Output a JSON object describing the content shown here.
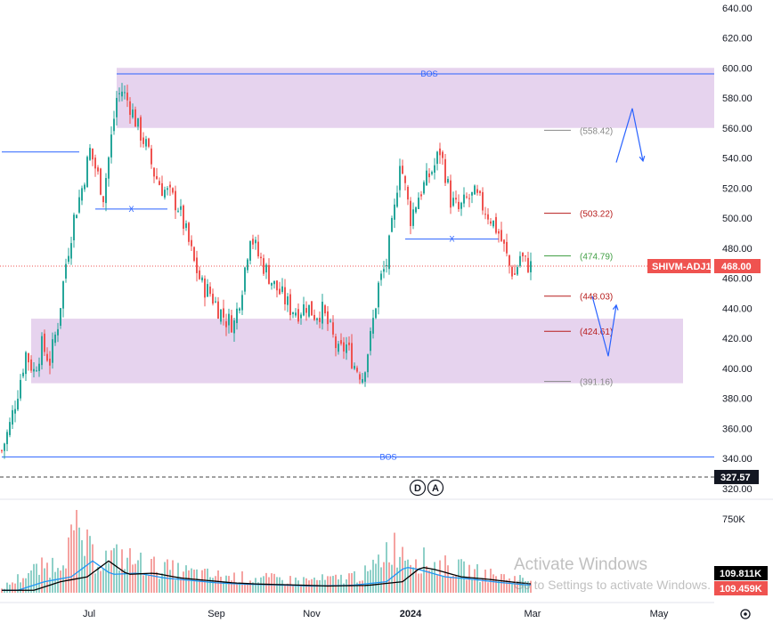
{
  "chart_data": {
    "type": "candlestick",
    "symbol_label": "SHIVM-ADJ1",
    "last_price": "468.00",
    "colors": {
      "up": "#26a69a",
      "down": "#ef5350",
      "zone": "#e6d3ee",
      "bos": "#2962ff",
      "volume_up": "#8fd0c8",
      "volume_down": "#f5a3a1"
    },
    "y_axis": {
      "range": [
        316,
        644
      ],
      "ticks": [
        "640.00",
        "620.00",
        "600.00",
        "580.00",
        "560.00",
        "540.00",
        "520.00",
        "500.00",
        "480.00",
        "460.00",
        "440.00",
        "420.00",
        "400.00",
        "380.00",
        "360.00",
        "340.00",
        "320.00"
      ]
    },
    "x_axis": {
      "ticks": [
        "Jul",
        "Sep",
        "Nov",
        "2024",
        "Mar",
        "May"
      ]
    },
    "price_path": [
      {
        "t": 0,
        "p": 345
      },
      {
        "t": 3,
        "p": 362
      },
      {
        "t": 6,
        "p": 385
      },
      {
        "t": 9,
        "p": 410
      },
      {
        "t": 12,
        "p": 398
      },
      {
        "t": 15,
        "p": 415
      },
      {
        "t": 18,
        "p": 405
      },
      {
        "t": 21,
        "p": 430
      },
      {
        "t": 24,
        "p": 470
      },
      {
        "t": 27,
        "p": 500
      },
      {
        "t": 30,
        "p": 520
      },
      {
        "t": 33,
        "p": 545
      },
      {
        "t": 36,
        "p": 528
      },
      {
        "t": 38,
        "p": 515
      },
      {
        "t": 40,
        "p": 540
      },
      {
        "t": 43,
        "p": 580
      },
      {
        "t": 45,
        "p": 585
      },
      {
        "t": 48,
        "p": 575
      },
      {
        "t": 51,
        "p": 560
      },
      {
        "t": 54,
        "p": 548
      },
      {
        "t": 57,
        "p": 530
      },
      {
        "t": 60,
        "p": 520
      },
      {
        "t": 63,
        "p": 515
      },
      {
        "t": 66,
        "p": 508
      },
      {
        "t": 69,
        "p": 490
      },
      {
        "t": 72,
        "p": 470
      },
      {
        "t": 75,
        "p": 455
      },
      {
        "t": 78,
        "p": 450
      },
      {
        "t": 81,
        "p": 440
      },
      {
        "t": 84,
        "p": 432
      },
      {
        "t": 87,
        "p": 430
      },
      {
        "t": 90,
        "p": 455
      },
      {
        "t": 93,
        "p": 490
      },
      {
        "t": 96,
        "p": 475
      },
      {
        "t": 99,
        "p": 465
      },
      {
        "t": 102,
        "p": 455
      },
      {
        "t": 105,
        "p": 448
      },
      {
        "t": 108,
        "p": 440
      },
      {
        "t": 111,
        "p": 438
      },
      {
        "t": 114,
        "p": 442
      },
      {
        "t": 117,
        "p": 436
      },
      {
        "t": 120,
        "p": 438
      },
      {
        "t": 123,
        "p": 425
      },
      {
        "t": 126,
        "p": 410
      },
      {
        "t": 129,
        "p": 415
      },
      {
        "t": 132,
        "p": 402
      },
      {
        "t": 135,
        "p": 395
      },
      {
        "t": 138,
        "p": 420
      },
      {
        "t": 141,
        "p": 455
      },
      {
        "t": 144,
        "p": 470
      },
      {
        "t": 147,
        "p": 505
      },
      {
        "t": 149,
        "p": 540
      },
      {
        "t": 151,
        "p": 520
      },
      {
        "t": 153,
        "p": 500
      },
      {
        "t": 156,
        "p": 515
      },
      {
        "t": 159,
        "p": 525
      },
      {
        "t": 162,
        "p": 535
      },
      {
        "t": 164,
        "p": 545
      },
      {
        "t": 166,
        "p": 530
      },
      {
        "t": 168,
        "p": 512
      },
      {
        "t": 171,
        "p": 505
      },
      {
        "t": 174,
        "p": 512
      },
      {
        "t": 177,
        "p": 515
      },
      {
        "t": 180,
        "p": 508
      },
      {
        "t": 183,
        "p": 500
      },
      {
        "t": 186,
        "p": 490
      },
      {
        "t": 188,
        "p": 480
      },
      {
        "t": 190,
        "p": 468
      },
      {
        "t": 192,
        "p": 462
      },
      {
        "t": 194,
        "p": 475
      },
      {
        "t": 196,
        "p": 470
      },
      {
        "t": 198,
        "p": 468
      }
    ],
    "zones": [
      {
        "from_t": 43,
        "to_t": null,
        "low": 560,
        "high": 600
      },
      {
        "from_t": 11,
        "to_t": 255,
        "low": 390,
        "high": 433
      }
    ],
    "horizontal_lines": [
      {
        "price": 596,
        "from_t": 43,
        "label": "BOS",
        "kind": "bos"
      },
      {
        "price": 341,
        "from_t": 0,
        "label": "BOS",
        "kind": "bos"
      },
      {
        "price": 544,
        "from_t": 0,
        "to_t": 29,
        "label": "",
        "kind": "plain"
      },
      {
        "price": 506,
        "from_t": 35,
        "to_t": 62,
        "label": "X",
        "kind": "plain"
      },
      {
        "price": 486,
        "from_t": 151,
        "to_t": 186,
        "label": "X",
        "kind": "plain"
      }
    ],
    "fib_levels": [
      {
        "price": 558.42,
        "label": "(558.42)",
        "color": "#888888"
      },
      {
        "price": 503.22,
        "label": "(503.22)",
        "color": "#b71c1c"
      },
      {
        "price": 474.79,
        "label": "(474.79)",
        "color": "#43a047"
      },
      {
        "price": 448.03,
        "label": "(448.03)",
        "color": "#b71c1c"
      },
      {
        "price": 424.61,
        "label": "(424.61)",
        "color": "#b71c1c"
      },
      {
        "price": 391.16,
        "label": "(391.16)",
        "color": "#888888"
      }
    ],
    "current_price_line": {
      "price": 468,
      "color": "#ef5350"
    },
    "dashed_level": {
      "price": 327.57,
      "label": "327.57"
    },
    "projections": [
      {
        "points": [
          [
            230,
            537
          ],
          [
            236,
            573
          ],
          [
            240,
            538
          ]
        ]
      },
      {
        "points": [
          [
            221,
            448
          ],
          [
            227,
            408
          ],
          [
            230,
            442
          ]
        ]
      }
    ],
    "event_markers": [
      "D",
      "A"
    ],
    "volume": {
      "axis_label": "750K",
      "sma_fast_label": "109.811K",
      "sma_slow_label": "109.459K",
      "profile": [
        {
          "t": 0,
          "v": 40
        },
        {
          "t": 10,
          "v": 180
        },
        {
          "t": 20,
          "v": 260
        },
        {
          "t": 28,
          "v": 520
        },
        {
          "t": 35,
          "v": 300
        },
        {
          "t": 45,
          "v": 320
        },
        {
          "t": 55,
          "v": 240
        },
        {
          "t": 65,
          "v": 200
        },
        {
          "t": 75,
          "v": 160
        },
        {
          "t": 85,
          "v": 140
        },
        {
          "t": 95,
          "v": 130
        },
        {
          "t": 110,
          "v": 110
        },
        {
          "t": 125,
          "v": 120
        },
        {
          "t": 138,
          "v": 180
        },
        {
          "t": 145,
          "v": 420
        },
        {
          "t": 150,
          "v": 380
        },
        {
          "t": 160,
          "v": 260
        },
        {
          "t": 170,
          "v": 220
        },
        {
          "t": 180,
          "v": 170
        },
        {
          "t": 190,
          "v": 130
        },
        {
          "t": 198,
          "v": 115
        }
      ]
    }
  },
  "watermark": {
    "line1": "Activate Windows",
    "line2": "Go to Settings to activate Windows."
  }
}
